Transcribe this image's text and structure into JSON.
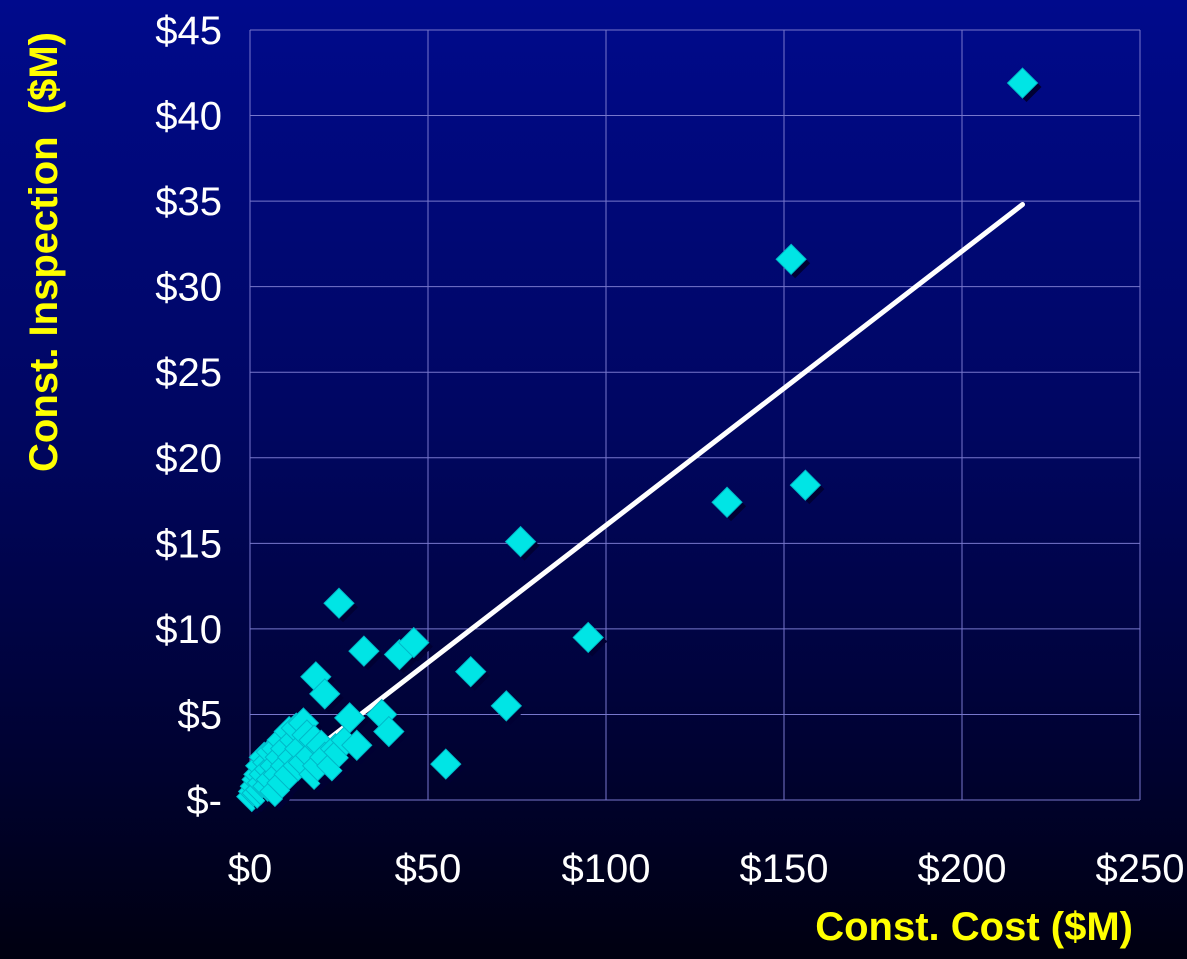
{
  "chart_data": {
    "type": "scatter",
    "title": "",
    "xlabel": "Const. Cost ($M)",
    "ylabel": "Const. Inspection  ($M)",
    "xlim": [
      0,
      250
    ],
    "ylim": [
      0,
      45
    ],
    "x_ticks": [
      0,
      50,
      100,
      150,
      200,
      250
    ],
    "y_ticks": [
      0,
      5,
      10,
      15,
      20,
      25,
      30,
      35,
      40,
      45
    ],
    "x_tick_labels": [
      "$0",
      "$50",
      "$100",
      "$150",
      "$200",
      "$250"
    ],
    "y_tick_labels": [
      "$-",
      "$5",
      "$10",
      "$15",
      "$20",
      "$25",
      "$30",
      "$35",
      "$40",
      "$45"
    ],
    "grid": true,
    "points": [
      {
        "x": 0.5,
        "y": 0.2
      },
      {
        "x": 1,
        "y": 0.5
      },
      {
        "x": 1.5,
        "y": 0.8
      },
      {
        "x": 2,
        "y": 0.4
      },
      {
        "x": 2,
        "y": 1.2
      },
      {
        "x": 2.5,
        "y": 1.5
      },
      {
        "x": 3,
        "y": 0.6
      },
      {
        "x": 3,
        "y": 2.0
      },
      {
        "x": 3.5,
        "y": 1.0
      },
      {
        "x": 4,
        "y": 2.5
      },
      {
        "x": 4,
        "y": 1.5
      },
      {
        "x": 5,
        "y": 0.8
      },
      {
        "x": 5,
        "y": 2.2
      },
      {
        "x": 5.5,
        "y": 1.8
      },
      {
        "x": 6,
        "y": 2.8
      },
      {
        "x": 6,
        "y": 1.2
      },
      {
        "x": 7,
        "y": 0.5
      },
      {
        "x": 7,
        "y": 2.0
      },
      {
        "x": 7.5,
        "y": 3.0
      },
      {
        "x": 8,
        "y": 1.5
      },
      {
        "x": 8.5,
        "y": 2.5
      },
      {
        "x": 9,
        "y": 3.5
      },
      {
        "x": 9,
        "y": 1.0
      },
      {
        "x": 10,
        "y": 2.0
      },
      {
        "x": 10,
        "y": 3.0
      },
      {
        "x": 11,
        "y": 4.0
      },
      {
        "x": 11,
        "y": 1.5
      },
      {
        "x": 12,
        "y": 2.5
      },
      {
        "x": 12.5,
        "y": 3.5
      },
      {
        "x": 13,
        "y": 4.2
      },
      {
        "x": 13.5,
        "y": 2.0
      },
      {
        "x": 14,
        "y": 3.0
      },
      {
        "x": 15,
        "y": 4.5
      },
      {
        "x": 15,
        "y": 2.2
      },
      {
        "x": 16,
        "y": 3.8
      },
      {
        "x": 17,
        "y": 2.6
      },
      {
        "x": 18,
        "y": 1.5
      },
      {
        "x": 18,
        "y": 3.5
      },
      {
        "x": 19,
        "y": 2.0
      },
      {
        "x": 20,
        "y": 3.2
      },
      {
        "x": 21,
        "y": 2.5
      },
      {
        "x": 23,
        "y": 2.0
      },
      {
        "x": 24,
        "y": 3.0
      },
      {
        "x": 25,
        "y": 2.8
      },
      {
        "x": 27,
        "y": 3.5
      },
      {
        "x": 28,
        "y": 4.8
      },
      {
        "x": 30,
        "y": 3.2
      },
      {
        "x": 18.5,
        "y": 7.2
      },
      {
        "x": 21,
        "y": 6.2
      },
      {
        "x": 25,
        "y": 11.5
      },
      {
        "x": 32,
        "y": 8.7
      },
      {
        "x": 37,
        "y": 5.0
      },
      {
        "x": 39,
        "y": 4.0
      },
      {
        "x": 42,
        "y": 8.5
      },
      {
        "x": 46,
        "y": 9.2
      },
      {
        "x": 55,
        "y": 2.1
      },
      {
        "x": 62,
        "y": 7.5
      },
      {
        "x": 72,
        "y": 5.5
      },
      {
        "x": 76,
        "y": 15.1
      },
      {
        "x": 95,
        "y": 9.5
      },
      {
        "x": 134,
        "y": 17.4
      },
      {
        "x": 152,
        "y": 31.6
      },
      {
        "x": 156,
        "y": 18.4
      },
      {
        "x": 217,
        "y": 41.9
      }
    ],
    "trendline": {
      "x": [
        0.5,
        217
      ],
      "y": [
        0.1,
        34.8
      ]
    },
    "colors": {
      "marker": "#00e5e5",
      "trendline": "#ffffff",
      "grid": "#7777cc",
      "tick_text": "#ffffff",
      "axis_title": "#ffff00"
    }
  }
}
